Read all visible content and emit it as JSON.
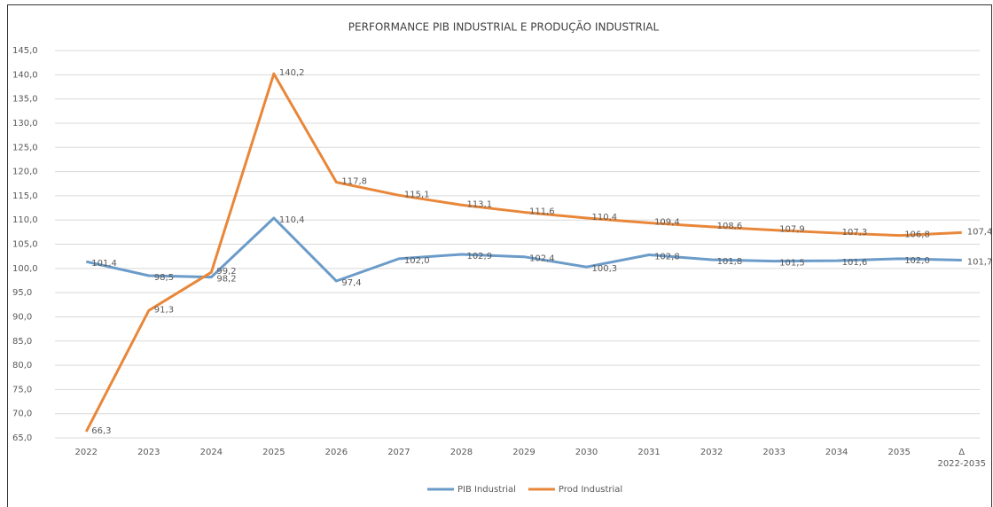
{
  "chart_data": {
    "type": "line",
    "title": "PERFORMANCE PIB INDUSTRIAL E PRODUÇÃO INDUSTRIAL",
    "categories": [
      "2022",
      "2023",
      "2024",
      "2025",
      "2026",
      "2027",
      "2028",
      "2029",
      "2030",
      "2031",
      "2032",
      "2033",
      "2034",
      "2035",
      "Δ\n2022-2035"
    ],
    "series": [
      {
        "name": "PIB Industrial",
        "color": "#6b9bc9",
        "values": [
          101.4,
          98.5,
          98.2,
          110.4,
          97.4,
          102.0,
          102.9,
          102.4,
          100.3,
          102.8,
          101.8,
          101.5,
          101.6,
          102.0,
          101.7
        ],
        "value_labels": [
          "101,4",
          "98,5",
          "98,2",
          "110,4",
          "97,4",
          "102,0",
          "102,9",
          "102,4",
          "100,3",
          "102,8",
          "101,8",
          "101,5",
          "101,6",
          "102,0",
          "101,7"
        ]
      },
      {
        "name": "Prod Industrial",
        "color": "#e8873a",
        "values": [
          66.3,
          91.3,
          99.2,
          140.2,
          117.8,
          115.1,
          113.1,
          111.6,
          110.4,
          109.4,
          108.6,
          107.9,
          107.3,
          106.8,
          107.4
        ],
        "value_labels": [
          "66,3",
          "91,3",
          "99,2",
          "140,2",
          "117,8",
          "115,1",
          "113,1",
          "111,6",
          "110,4",
          "109,4",
          "108,6",
          "107,9",
          "107,3",
          "106,8",
          "107,4"
        ]
      }
    ],
    "ylim": [
      65,
      145
    ],
    "yticks": [
      {
        "value": 65,
        "label": "65,0"
      },
      {
        "value": 70,
        "label": "70,0"
      },
      {
        "value": 75,
        "label": "75,0"
      },
      {
        "value": 80,
        "label": "80,0"
      },
      {
        "value": 85,
        "label": "85,0"
      },
      {
        "value": 90,
        "label": "90,0"
      },
      {
        "value": 95,
        "label": "95,0"
      },
      {
        "value": 100,
        "label": "100,0"
      },
      {
        "value": 105,
        "label": "105,0"
      },
      {
        "value": 110,
        "label": "110,0"
      },
      {
        "value": 115,
        "label": "115,0"
      },
      {
        "value": 120,
        "label": "120,0"
      },
      {
        "value": 125,
        "label": "125,0"
      },
      {
        "value": 130,
        "label": "130,0"
      },
      {
        "value": 135,
        "label": "135,0"
      },
      {
        "value": 140,
        "label": "140,0"
      },
      {
        "value": 145,
        "label": "145,0"
      }
    ],
    "grid": true,
    "legend": "bottom"
  }
}
